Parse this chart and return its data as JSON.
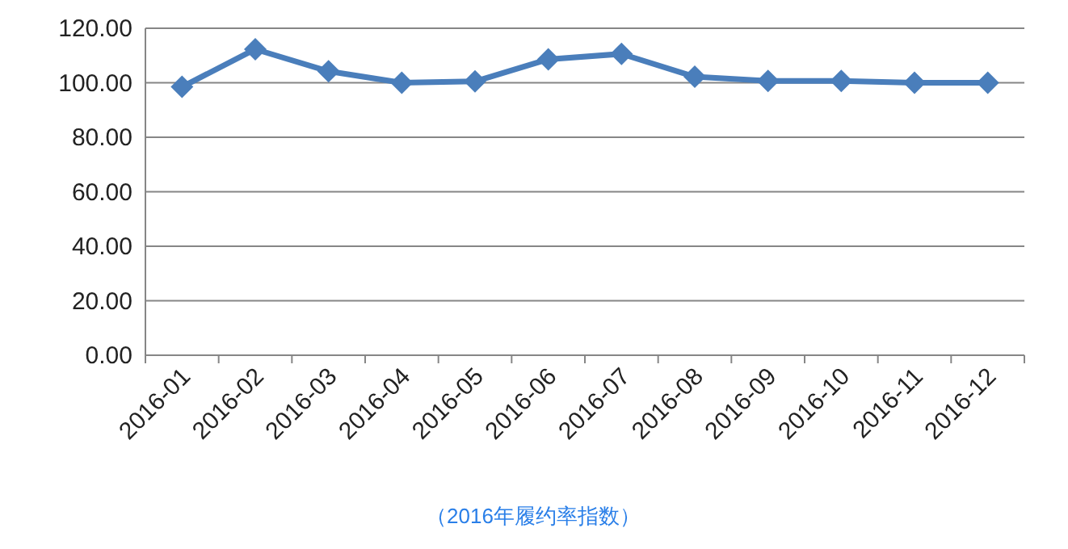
{
  "chart_data": {
    "type": "line",
    "categories": [
      "2016-01",
      "2016-02",
      "2016-03",
      "2016-04",
      "2016-05",
      "2016-06",
      "2016-07",
      "2016-08",
      "2016-09",
      "2016-10",
      "2016-11",
      "2016-12"
    ],
    "series": [
      {
        "color": "#4a7ebb",
        "values": [
          98.5,
          112.3,
          104.2,
          100.0,
          100.5,
          108.6,
          110.6,
          102.2,
          100.7,
          100.7,
          100.0,
          100.0
        ]
      }
    ],
    "ylim": [
      0,
      120
    ],
    "yticks": [
      {
        "value": 0,
        "label": "0.00"
      },
      {
        "value": 20,
        "label": "20.00"
      },
      {
        "value": 40,
        "label": "40.00"
      },
      {
        "value": 60,
        "label": "60.00"
      },
      {
        "value": 80,
        "label": "80.00"
      },
      {
        "value": 100,
        "label": "100.00"
      },
      {
        "value": 120,
        "label": "120.00"
      }
    ],
    "grid": "y",
    "marker": "diamond",
    "line_style": "solid",
    "annotations": [
      "（2016年履约率指数）"
    ]
  }
}
